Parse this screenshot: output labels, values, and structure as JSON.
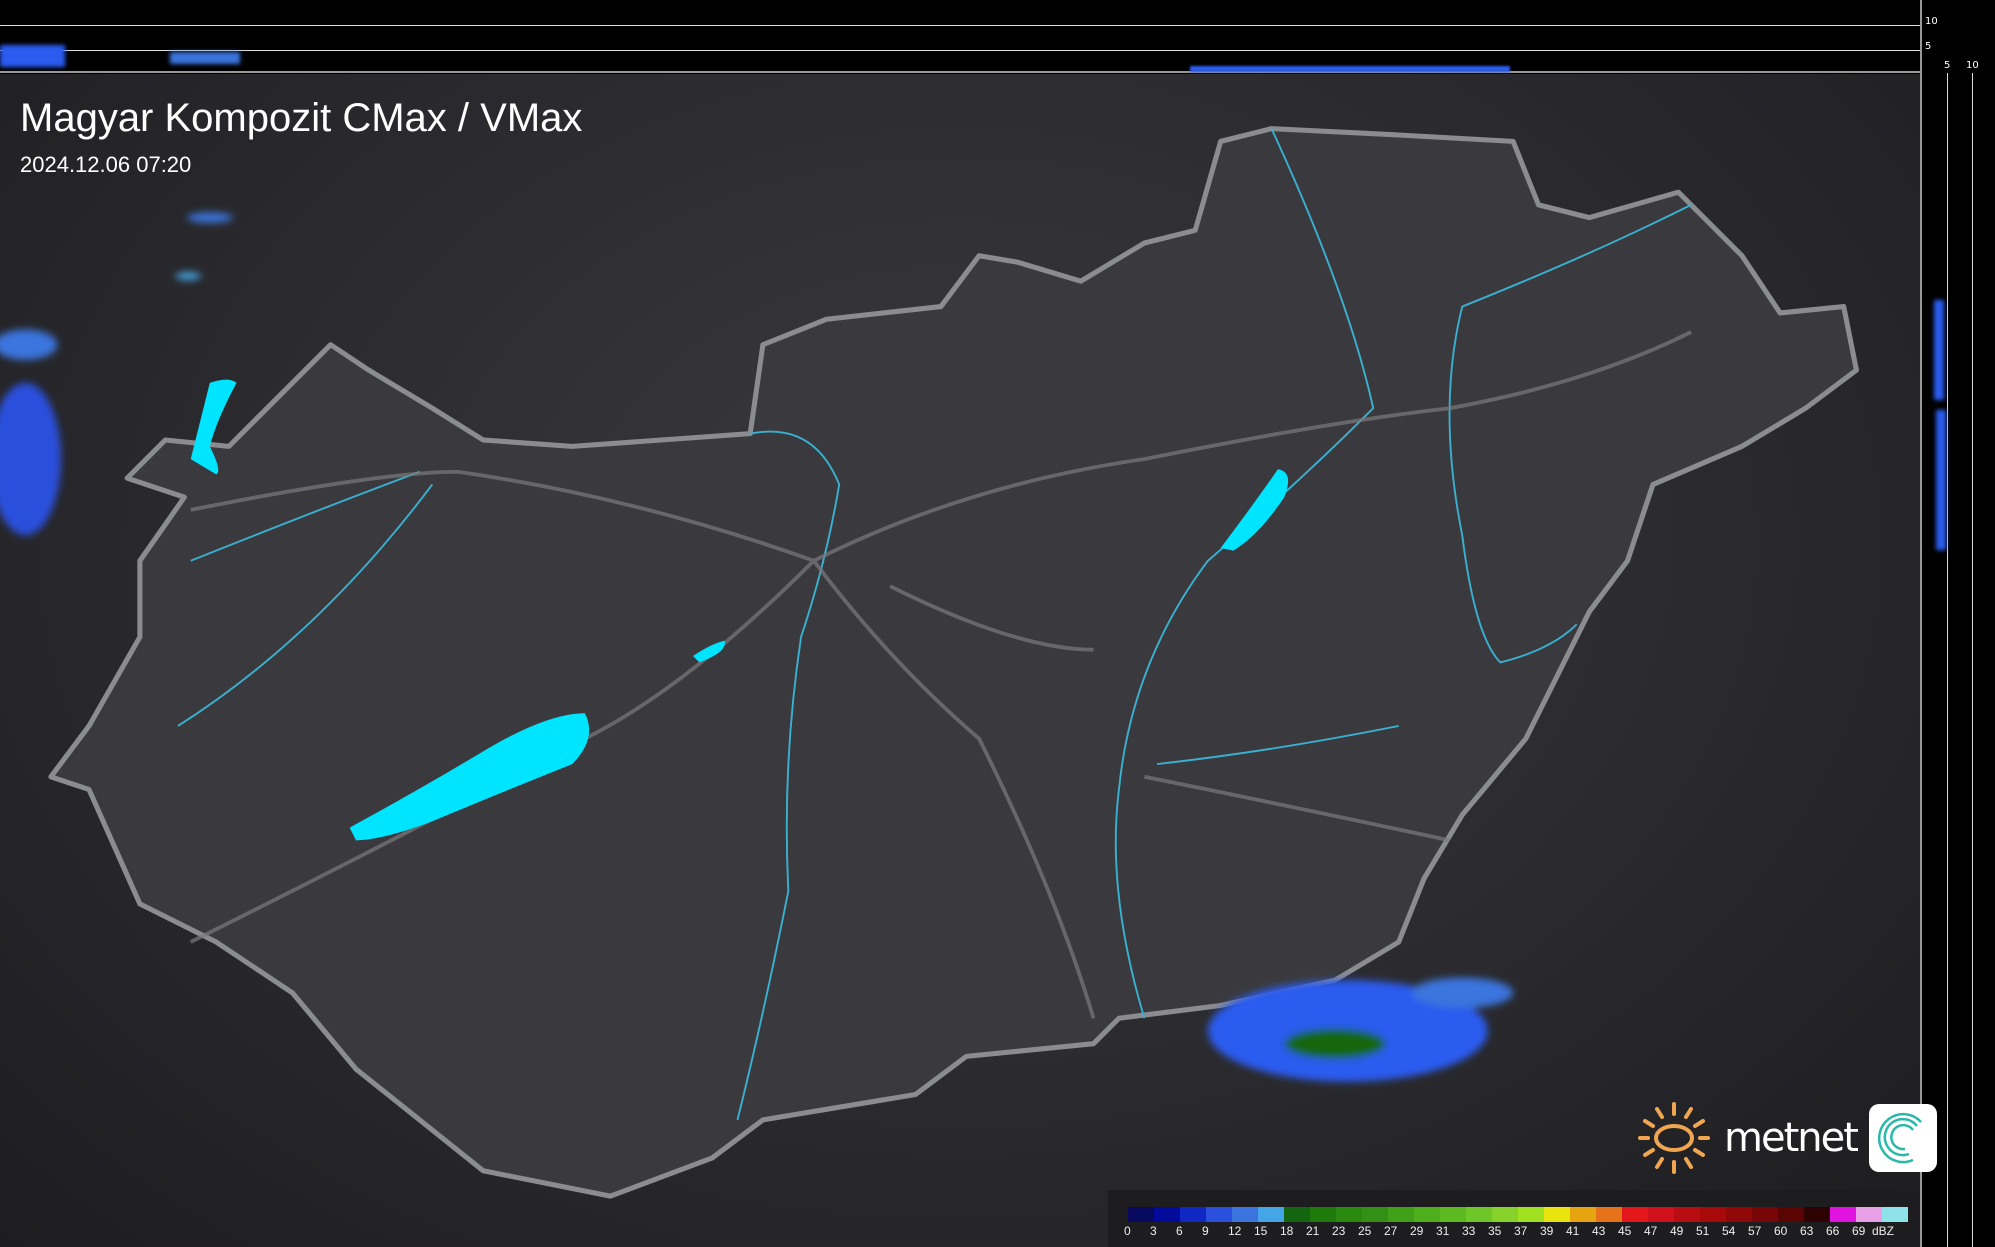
{
  "header": {
    "title": "Magyar Kompozit CMax / VMax",
    "timestamp": "2024.12.06 07:20"
  },
  "profile_axes": {
    "vertical_ticks": [
      "10",
      "5"
    ],
    "horizontal_ticks": [
      "5",
      "10"
    ]
  },
  "legend": {
    "unit": "dBZ",
    "labels": [
      "0",
      "3",
      "6",
      "9",
      "12",
      "15",
      "18",
      "21",
      "23",
      "25",
      "27",
      "29",
      "31",
      "33",
      "35",
      "37",
      "39",
      "41",
      "43",
      "45",
      "47",
      "49",
      "51",
      "54",
      "57",
      "60",
      "63",
      "66",
      "69"
    ],
    "colors": [
      "#070a5e",
      "#040b9a",
      "#1127c4",
      "#2a4fdc",
      "#3b74de",
      "#44a6e6",
      "#13660f",
      "#1d7a0b",
      "#2a8a10",
      "#348f16",
      "#40a018",
      "#4fae1b",
      "#5cba20",
      "#6fc628",
      "#86d22a",
      "#9fe021",
      "#e9e40e",
      "#e6a410",
      "#e6731a",
      "#e3161a",
      "#d0101a",
      "#b80d12",
      "#a80a0c",
      "#900808",
      "#780606",
      "#5a0404",
      "#2e0202",
      "#e013e0",
      "#e8a0e6",
      "#8ee3ea"
    ]
  },
  "colors": {
    "border": "#8a8c90",
    "river": "#3ab0d0",
    "lake": "#00e5ff",
    "radar": "#2a5cf0"
  },
  "logo": {
    "brand": "metnet"
  }
}
